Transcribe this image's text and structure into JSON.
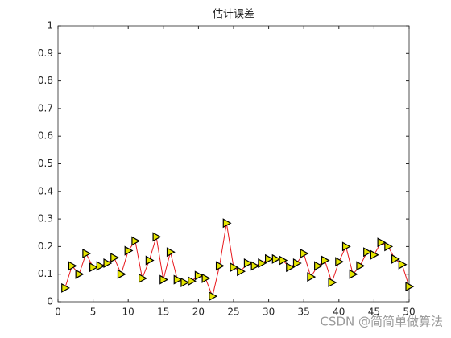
{
  "chart_data": {
    "type": "line",
    "title": "估计误差",
    "x": [
      1,
      2,
      3,
      4,
      5,
      6,
      7,
      8,
      9,
      10,
      11,
      12,
      13,
      14,
      15,
      16,
      17,
      18,
      19,
      20,
      21,
      22,
      23,
      24,
      25,
      26,
      27,
      28,
      29,
      30,
      31,
      32,
      33,
      34,
      35,
      36,
      37,
      38,
      39,
      40,
      41,
      42,
      43,
      44,
      45,
      46,
      47,
      48,
      49,
      50
    ],
    "series": [
      {
        "color": "#e8191e",
        "marker_color": "#e6e600",
        "values": [
          0.05,
          0.13,
          0.1,
          0.175,
          0.125,
          0.13,
          0.14,
          0.16,
          0.1,
          0.185,
          0.22,
          0.085,
          0.15,
          0.235,
          0.08,
          0.18,
          0.08,
          0.07,
          0.075,
          0.095,
          0.085,
          0.02,
          0.13,
          0.285,
          0.125,
          0.11,
          0.14,
          0.13,
          0.14,
          0.155,
          0.155,
          0.15,
          0.125,
          0.14,
          0.175,
          0.09,
          0.13,
          0.15,
          0.07,
          0.145,
          0.2,
          0.1,
          0.13,
          0.18,
          0.17,
          0.215,
          0.2,
          0.155,
          0.135,
          0.055
        ]
      }
    ],
    "xlim": [
      0,
      50
    ],
    "xticks": [
      0,
      5,
      10,
      15,
      20,
      25,
      30,
      35,
      40,
      45,
      50
    ],
    "ylim": [
      0,
      1
    ],
    "yticks": [
      0,
      0.1,
      0.2,
      0.3,
      0.4,
      0.5,
      0.6,
      0.7,
      0.8,
      0.9,
      1
    ],
    "grid": false
  },
  "watermark": "CSDN @简简单做算法"
}
